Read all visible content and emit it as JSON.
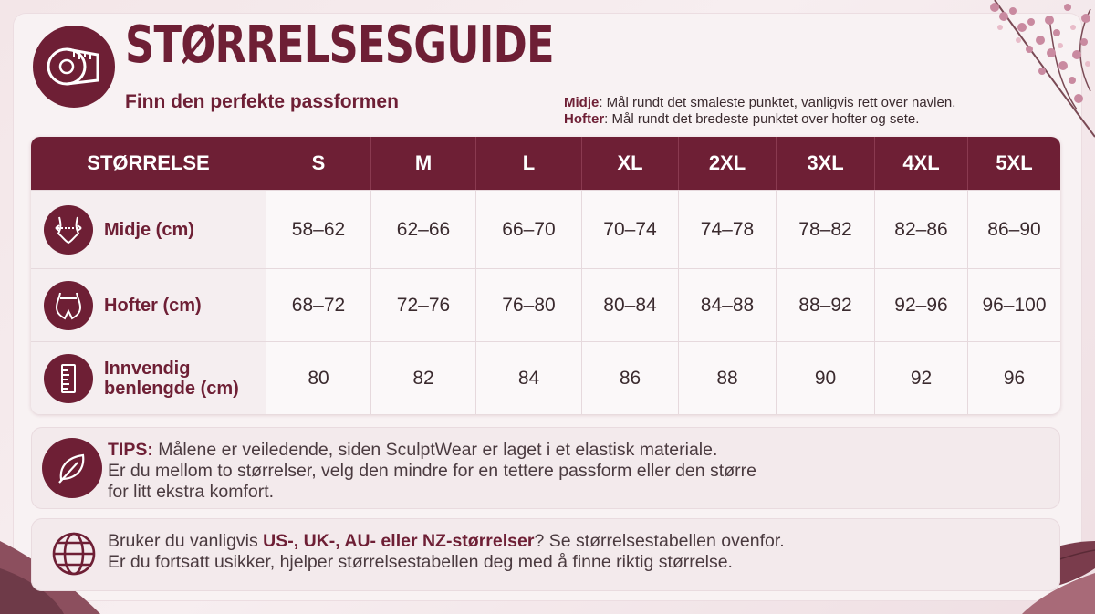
{
  "header": {
    "title": "STØRRELSESGUIDE",
    "subtitle": "Finn den perfekte passformen",
    "icon": "measuring-tape-icon"
  },
  "notes": [
    {
      "term": "Midje",
      "text": ": Mål rundt det smaleste punktet, vanligvis rett over navlen."
    },
    {
      "term": "Hofter",
      "text": ": Mål rundt det bredeste punktet over hofter og sete."
    }
  ],
  "table": {
    "corner_label": "STØRRELSE",
    "sizes": [
      "S",
      "M",
      "L",
      "XL",
      "2XL",
      "3XL",
      "4XL",
      "5XL"
    ],
    "rows": [
      {
        "label": "Midje (cm)",
        "icon": "waist-icon",
        "values": [
          "58–62",
          "62–66",
          "66–70",
          "70–74",
          "74–78",
          "78–82",
          "82–86",
          "86–90"
        ]
      },
      {
        "label": "Hofter (cm)",
        "icon": "hips-icon",
        "values": [
          "68–72",
          "72–76",
          "76–80",
          "80–84",
          "84–88",
          "88–92",
          "92–96",
          "96–100"
        ]
      },
      {
        "label_line1": "Innvendig",
        "label_line2": "benlengde (cm)",
        "icon": "ruler-icon",
        "values": [
          "80",
          "82",
          "84",
          "86",
          "88",
          "90",
          "92",
          "96"
        ]
      }
    ]
  },
  "tips": {
    "icon": "leaf-icon",
    "label": "TIPS:",
    "line1": " Målene er veiledende, siden SculptWear er laget i et elastisk materiale.",
    "line2": "Er du mellom to størrelser, velg den mindre for en tettere passform eller den større",
    "line3": "for litt ekstra komfort."
  },
  "intl": {
    "icon": "globe-icon",
    "pre": "Bruker du vanligvis ",
    "bold": "US-, UK-, AU- eller NZ-størrelser",
    "post": "? Se størrelsestabellen ovenfor.",
    "line2": "Er du fortsatt usikker, hjelper størrelsestabellen deg med å finne riktig størrelse."
  },
  "colors": {
    "accent": "#6e1f35",
    "background": "#f3e6e8"
  }
}
